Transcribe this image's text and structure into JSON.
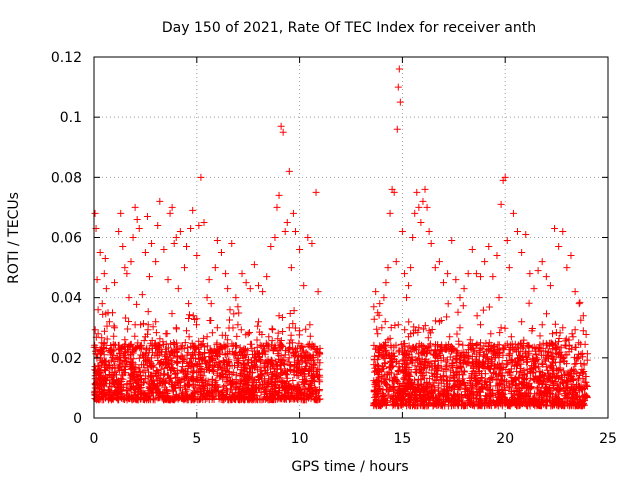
{
  "chart_data": {
    "type": "scatter",
    "title": "Day 150 of 2021, Rate Of TEC Index for receiver anth",
    "xlabel": "GPS time / hours",
    "ylabel": "ROTI / TECUs",
    "xlim": [
      0,
      25
    ],
    "ylim": [
      0,
      0.12
    ],
    "xticks": [
      0,
      5,
      10,
      15,
      20,
      25
    ],
    "yticks": [
      0,
      0.02,
      0.04,
      0.06,
      0.08,
      0.1,
      0.12
    ],
    "xtick_labels": [
      "0",
      "5",
      "10",
      "15",
      "20",
      "25"
    ],
    "ytick_labels": [
      "0",
      "0.02",
      "0.04",
      "0.06",
      "0.08",
      "0.1",
      "0.12"
    ],
    "grid": true,
    "legend": "none",
    "marker": "plus",
    "color": "#ff0000",
    "series": [
      {
        "x": [
          0.05,
          0.1,
          0.15,
          0.2,
          0.3,
          0.4,
          0.5,
          0.55,
          0.6,
          0.75,
          0.9,
          1.0,
          1.2,
          1.3,
          1.4,
          1.5,
          1.6,
          1.7,
          1.8,
          1.9,
          2.0,
          2.1,
          2.2,
          2.35,
          2.5,
          2.6,
          2.7,
          2.8,
          3.0,
          3.1,
          3.2,
          3.4,
          3.6,
          3.7,
          3.8,
          3.9,
          4.0,
          4.1,
          4.2,
          4.4,
          4.5,
          4.6,
          4.7,
          4.8,
          5.0,
          5.1,
          5.2,
          5.35,
          5.5,
          5.6,
          5.7,
          5.9,
          6.0,
          6.2,
          6.4,
          6.5,
          6.7,
          6.9,
          7.0,
          7.2,
          7.4,
          7.6,
          7.8,
          8.0,
          8.2,
          8.4,
          8.6,
          8.8,
          8.9,
          9.0,
          9.1,
          9.2,
          9.3,
          9.4,
          9.5,
          9.6,
          9.7,
          9.8,
          10.0,
          10.2,
          10.4,
          10.6,
          10.8,
          10.9,
          0.2,
          0.5,
          1.0,
          1.5,
          2.0,
          2.5,
          3.0,
          3.5,
          4.0,
          4.5,
          5.0,
          5.5,
          6.0,
          6.5,
          7.0,
          7.5,
          8.0,
          8.5,
          9.0,
          9.5,
          10.0,
          10.5,
          0.3,
          0.8,
          1.3,
          1.8,
          2.3,
          2.8,
          3.3,
          3.8,
          4.3,
          4.8,
          5.3,
          5.8,
          6.3,
          6.8,
          7.3,
          7.8,
          8.3,
          8.8,
          9.3,
          9.8,
          10.3,
          10.8,
          13.7,
          13.8,
          13.9,
          14.0,
          14.1,
          14.2,
          14.3,
          14.4,
          14.5,
          14.6,
          14.7,
          14.75,
          14.8,
          14.85,
          14.9,
          15.0,
          15.1,
          15.2,
          15.3,
          15.4,
          15.5,
          15.6,
          15.7,
          15.8,
          15.9,
          16.0,
          16.1,
          16.2,
          16.3,
          16.4,
          16.6,
          16.8,
          17.0,
          17.2,
          17.4,
          17.6,
          17.8,
          18.0,
          18.2,
          18.4,
          18.6,
          18.8,
          19.0,
          19.2,
          19.4,
          19.6,
          19.7,
          19.8,
          19.9,
          20.0,
          20.1,
          20.2,
          20.4,
          20.6,
          20.8,
          21.0,
          21.2,
          21.4,
          21.6,
          21.8,
          22.0,
          22.2,
          22.4,
          22.6,
          22.8,
          23.0,
          23.2,
          23.4,
          23.6,
          23.8,
          13.8,
          14.3,
          14.8,
          15.3,
          15.8,
          16.3,
          16.8,
          17.3,
          17.8,
          18.3,
          18.8,
          19.3,
          19.8,
          20.3,
          20.8,
          21.3,
          21.8,
          22.3,
          22.8,
          23.3,
          23.8,
          14.0,
          14.5,
          15.0,
          15.5,
          16.0,
          16.5,
          17.0,
          17.5,
          18.0,
          18.5,
          19.0,
          19.5,
          20.0,
          20.5,
          21.0,
          21.5,
          22.0,
          22.5,
          23.0,
          23.5
        ],
        "y": [
          0.068,
          0.063,
          0.046,
          0.036,
          0.055,
          0.038,
          0.048,
          0.053,
          0.043,
          0.032,
          0.035,
          0.045,
          0.062,
          0.068,
          0.057,
          0.05,
          0.048,
          0.04,
          0.052,
          0.06,
          0.07,
          0.066,
          0.063,
          0.041,
          0.055,
          0.067,
          0.047,
          0.058,
          0.052,
          0.064,
          0.072,
          0.056,
          0.046,
          0.068,
          0.07,
          0.058,
          0.06,
          0.043,
          0.062,
          0.05,
          0.057,
          0.038,
          0.063,
          0.069,
          0.054,
          0.064,
          0.08,
          0.065,
          0.04,
          0.046,
          0.038,
          0.05,
          0.059,
          0.055,
          0.048,
          0.043,
          0.058,
          0.04,
          0.037,
          0.048,
          0.045,
          0.043,
          0.051,
          0.044,
          0.042,
          0.047,
          0.057,
          0.06,
          0.07,
          0.074,
          0.097,
          0.095,
          0.062,
          0.065,
          0.082,
          0.05,
          0.068,
          0.062,
          0.056,
          0.044,
          0.06,
          0.058,
          0.075,
          0.042,
          0.028,
          0.025,
          0.03,
          0.026,
          0.031,
          0.027,
          0.032,
          0.028,
          0.03,
          0.029,
          0.033,
          0.027,
          0.03,
          0.026,
          0.031,
          0.028,
          0.032,
          0.027,
          0.034,
          0.03,
          0.029,
          0.031,
          0.02,
          0.022,
          0.019,
          0.021,
          0.023,
          0.02,
          0.022,
          0.019,
          0.024,
          0.021,
          0.02,
          0.022,
          0.019,
          0.021,
          0.023,
          0.02,
          0.022,
          0.024,
          0.021,
          0.023,
          0.02,
          0.022,
          0.042,
          0.035,
          0.038,
          0.03,
          0.04,
          0.045,
          0.05,
          0.068,
          0.076,
          0.075,
          0.052,
          0.096,
          0.11,
          0.116,
          0.105,
          0.062,
          0.048,
          0.04,
          0.044,
          0.05,
          0.06,
          0.068,
          0.075,
          0.07,
          0.065,
          0.072,
          0.076,
          0.07,
          0.062,
          0.058,
          0.05,
          0.052,
          0.045,
          0.048,
          0.059,
          0.046,
          0.04,
          0.043,
          0.048,
          0.056,
          0.048,
          0.047,
          0.052,
          0.057,
          0.047,
          0.054,
          0.04,
          0.071,
          0.079,
          0.08,
          0.059,
          0.05,
          0.068,
          0.062,
          0.055,
          0.061,
          0.048,
          0.043,
          0.049,
          0.052,
          0.047,
          0.044,
          0.063,
          0.057,
          0.062,
          0.05,
          0.054,
          0.042,
          0.038,
          0.034,
          0.028,
          0.026,
          0.031,
          0.027,
          0.03,
          0.029,
          0.032,
          0.027,
          0.03,
          0.026,
          0.031,
          0.028,
          0.03,
          0.027,
          0.032,
          0.029,
          0.031,
          0.028,
          0.03,
          0.027,
          0.029,
          0.021,
          0.02,
          0.023,
          0.019,
          0.022,
          0.021,
          0.02,
          0.023,
          0.019,
          0.022,
          0.021,
          0.02,
          0.024,
          0.019,
          0.022,
          0.021,
          0.02,
          0.023,
          0.021,
          0.02
        ]
      }
    ],
    "dense_band": {
      "segments": [
        {
          "x_range": [
            0,
            11.0
          ],
          "y_base_range": [
            0.006,
            0.025
          ],
          "count": 1900
        },
        {
          "x_range": [
            13.6,
            24.0
          ],
          "y_base_range": [
            0.004,
            0.025
          ],
          "count": 1900
        }
      ]
    }
  }
}
